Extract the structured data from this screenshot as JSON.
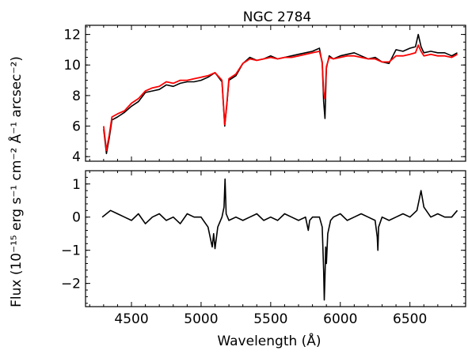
{
  "chart_data": [
    {
      "type": "line",
      "title": "NGC 2784",
      "xlim": [
        4170,
        6900
      ],
      "ylim": [
        3.7,
        12.6
      ],
      "xticks": [
        4500,
        5000,
        5500,
        6000,
        6500
      ],
      "yticks": [
        4,
        6,
        8,
        10,
        12
      ],
      "ytick_labels": [
        "4",
        "6",
        "8",
        "10",
        "12"
      ],
      "grid": false,
      "series": [
        {
          "color": "#000000",
          "x": [
            4300,
            4320,
            4340,
            4360,
            4400,
            4450,
            4500,
            4550,
            4600,
            4650,
            4700,
            4750,
            4800,
            4850,
            4900,
            4950,
            5000,
            5050,
            5100,
            5150,
            5170,
            5185,
            5200,
            5250,
            5300,
            5350,
            5400,
            5450,
            5500,
            5550,
            5600,
            5650,
            5700,
            5750,
            5800,
            5850,
            5870,
            5880,
            5890,
            5900,
            5920,
            5950,
            6000,
            6050,
            6100,
            6150,
            6200,
            6250,
            6300,
            6350,
            6400,
            6450,
            6500,
            6540,
            6560,
            6580,
            6600,
            6650,
            6700,
            6750,
            6800,
            6840
          ],
          "y": [
            5.8,
            4.2,
            5.2,
            6.4,
            6.6,
            6.9,
            7.3,
            7.6,
            8.2,
            8.3,
            8.4,
            8.7,
            8.6,
            8.8,
            8.9,
            8.9,
            9.0,
            9.2,
            9.5,
            8.9,
            6.0,
            7.4,
            9.0,
            9.3,
            10.1,
            10.5,
            10.3,
            10.4,
            10.6,
            10.4,
            10.5,
            10.6,
            10.7,
            10.8,
            10.9,
            11.1,
            10.1,
            7.6,
            6.5,
            9.8,
            10.6,
            10.4,
            10.6,
            10.7,
            10.8,
            10.6,
            10.4,
            10.5,
            10.2,
            10.1,
            11.0,
            10.9,
            11.1,
            11.2,
            12.0,
            11.2,
            10.8,
            10.9,
            10.8,
            10.8,
            10.6,
            10.8
          ]
        },
        {
          "color": "#ff0000",
          "x": [
            4300,
            4320,
            4340,
            4360,
            4400,
            4450,
            4500,
            4550,
            4600,
            4650,
            4700,
            4750,
            4800,
            4850,
            4900,
            4950,
            5000,
            5050,
            5100,
            5150,
            5170,
            5185,
            5200,
            5250,
            5300,
            5350,
            5400,
            5450,
            5500,
            5550,
            5600,
            5650,
            5700,
            5750,
            5800,
            5850,
            5870,
            5880,
            5890,
            5900,
            5920,
            5950,
            6000,
            6050,
            6100,
            6150,
            6200,
            6250,
            6300,
            6350,
            6400,
            6450,
            6500,
            6540,
            6560,
            6580,
            6600,
            6650,
            6700,
            6750,
            6800,
            6840
          ],
          "y": [
            6.0,
            4.4,
            5.4,
            6.6,
            6.8,
            7.0,
            7.5,
            7.8,
            8.3,
            8.5,
            8.6,
            8.9,
            8.8,
            9.0,
            9.0,
            9.1,
            9.2,
            9.3,
            9.5,
            9.0,
            6.1,
            7.5,
            9.1,
            9.4,
            10.1,
            10.4,
            10.3,
            10.4,
            10.5,
            10.4,
            10.5,
            10.5,
            10.6,
            10.7,
            10.8,
            10.9,
            10.2,
            8.2,
            7.8,
            9.9,
            10.5,
            10.4,
            10.5,
            10.6,
            10.6,
            10.5,
            10.4,
            10.4,
            10.2,
            10.2,
            10.6,
            10.6,
            10.7,
            10.8,
            11.3,
            10.9,
            10.6,
            10.7,
            10.6,
            10.6,
            10.5,
            10.7
          ]
        }
      ]
    },
    {
      "type": "line",
      "title": "",
      "xlim": [
        4170,
        6900
      ],
      "ylim": [
        -2.7,
        1.4
      ],
      "xticks": [
        4500,
        5000,
        5500,
        6000,
        6500
      ],
      "xtick_labels": [
        "4500",
        "5000",
        "5500",
        "6000",
        "6500"
      ],
      "yticks": [
        -2,
        -1,
        0,
        1
      ],
      "ytick_labels": [
        "−2",
        "−1",
        "0",
        "1"
      ],
      "xlabel": "Wavelength (Å)",
      "grid": false,
      "series": [
        {
          "color": "#000000",
          "x": [
            4290,
            4320,
            4350,
            4400,
            4450,
            4500,
            4550,
            4600,
            4650,
            4700,
            4750,
            4800,
            4850,
            4900,
            4950,
            5000,
            5050,
            5080,
            5090,
            5100,
            5120,
            5150,
            5165,
            5172,
            5180,
            5200,
            5250,
            5300,
            5350,
            5400,
            5450,
            5500,
            5550,
            5600,
            5650,
            5700,
            5750,
            5770,
            5780,
            5800,
            5850,
            5870,
            5880,
            5885,
            5890,
            5895,
            5900,
            5910,
            5930,
            5950,
            6000,
            6050,
            6100,
            6150,
            6200,
            6250,
            6265,
            6270,
            6275,
            6300,
            6350,
            6400,
            6450,
            6500,
            6550,
            6570,
            6580,
            6600,
            6650,
            6700,
            6750,
            6800,
            6840
          ],
          "y": [
            0.0,
            0.1,
            0.2,
            0.1,
            0.0,
            -0.1,
            0.1,
            -0.2,
            0.0,
            0.1,
            -0.1,
            0.0,
            -0.2,
            0.1,
            0.0,
            0.0,
            -0.3,
            -0.9,
            -0.5,
            -0.95,
            -0.3,
            0.0,
            0.3,
            1.15,
            0.1,
            -0.1,
            0.0,
            -0.1,
            0.0,
            0.1,
            -0.1,
            0.0,
            -0.1,
            0.1,
            0.0,
            -0.1,
            0.0,
            -0.4,
            -0.1,
            0.0,
            0.0,
            -0.3,
            -1.6,
            -2.5,
            -1.8,
            -0.9,
            -1.4,
            -0.5,
            -0.1,
            0.0,
            0.1,
            -0.1,
            0.0,
            0.1,
            0.0,
            -0.1,
            -0.6,
            -1.0,
            -0.3,
            0.0,
            -0.1,
            0.0,
            0.1,
            0.0,
            0.2,
            0.6,
            0.8,
            0.3,
            0.0,
            0.1,
            0.0,
            0.0,
            0.2
          ]
        }
      ]
    }
  ],
  "ylabel": "Flux (10⁻¹⁵ erg s⁻¹ cm⁻² Å⁻¹ arcsec⁻²)"
}
